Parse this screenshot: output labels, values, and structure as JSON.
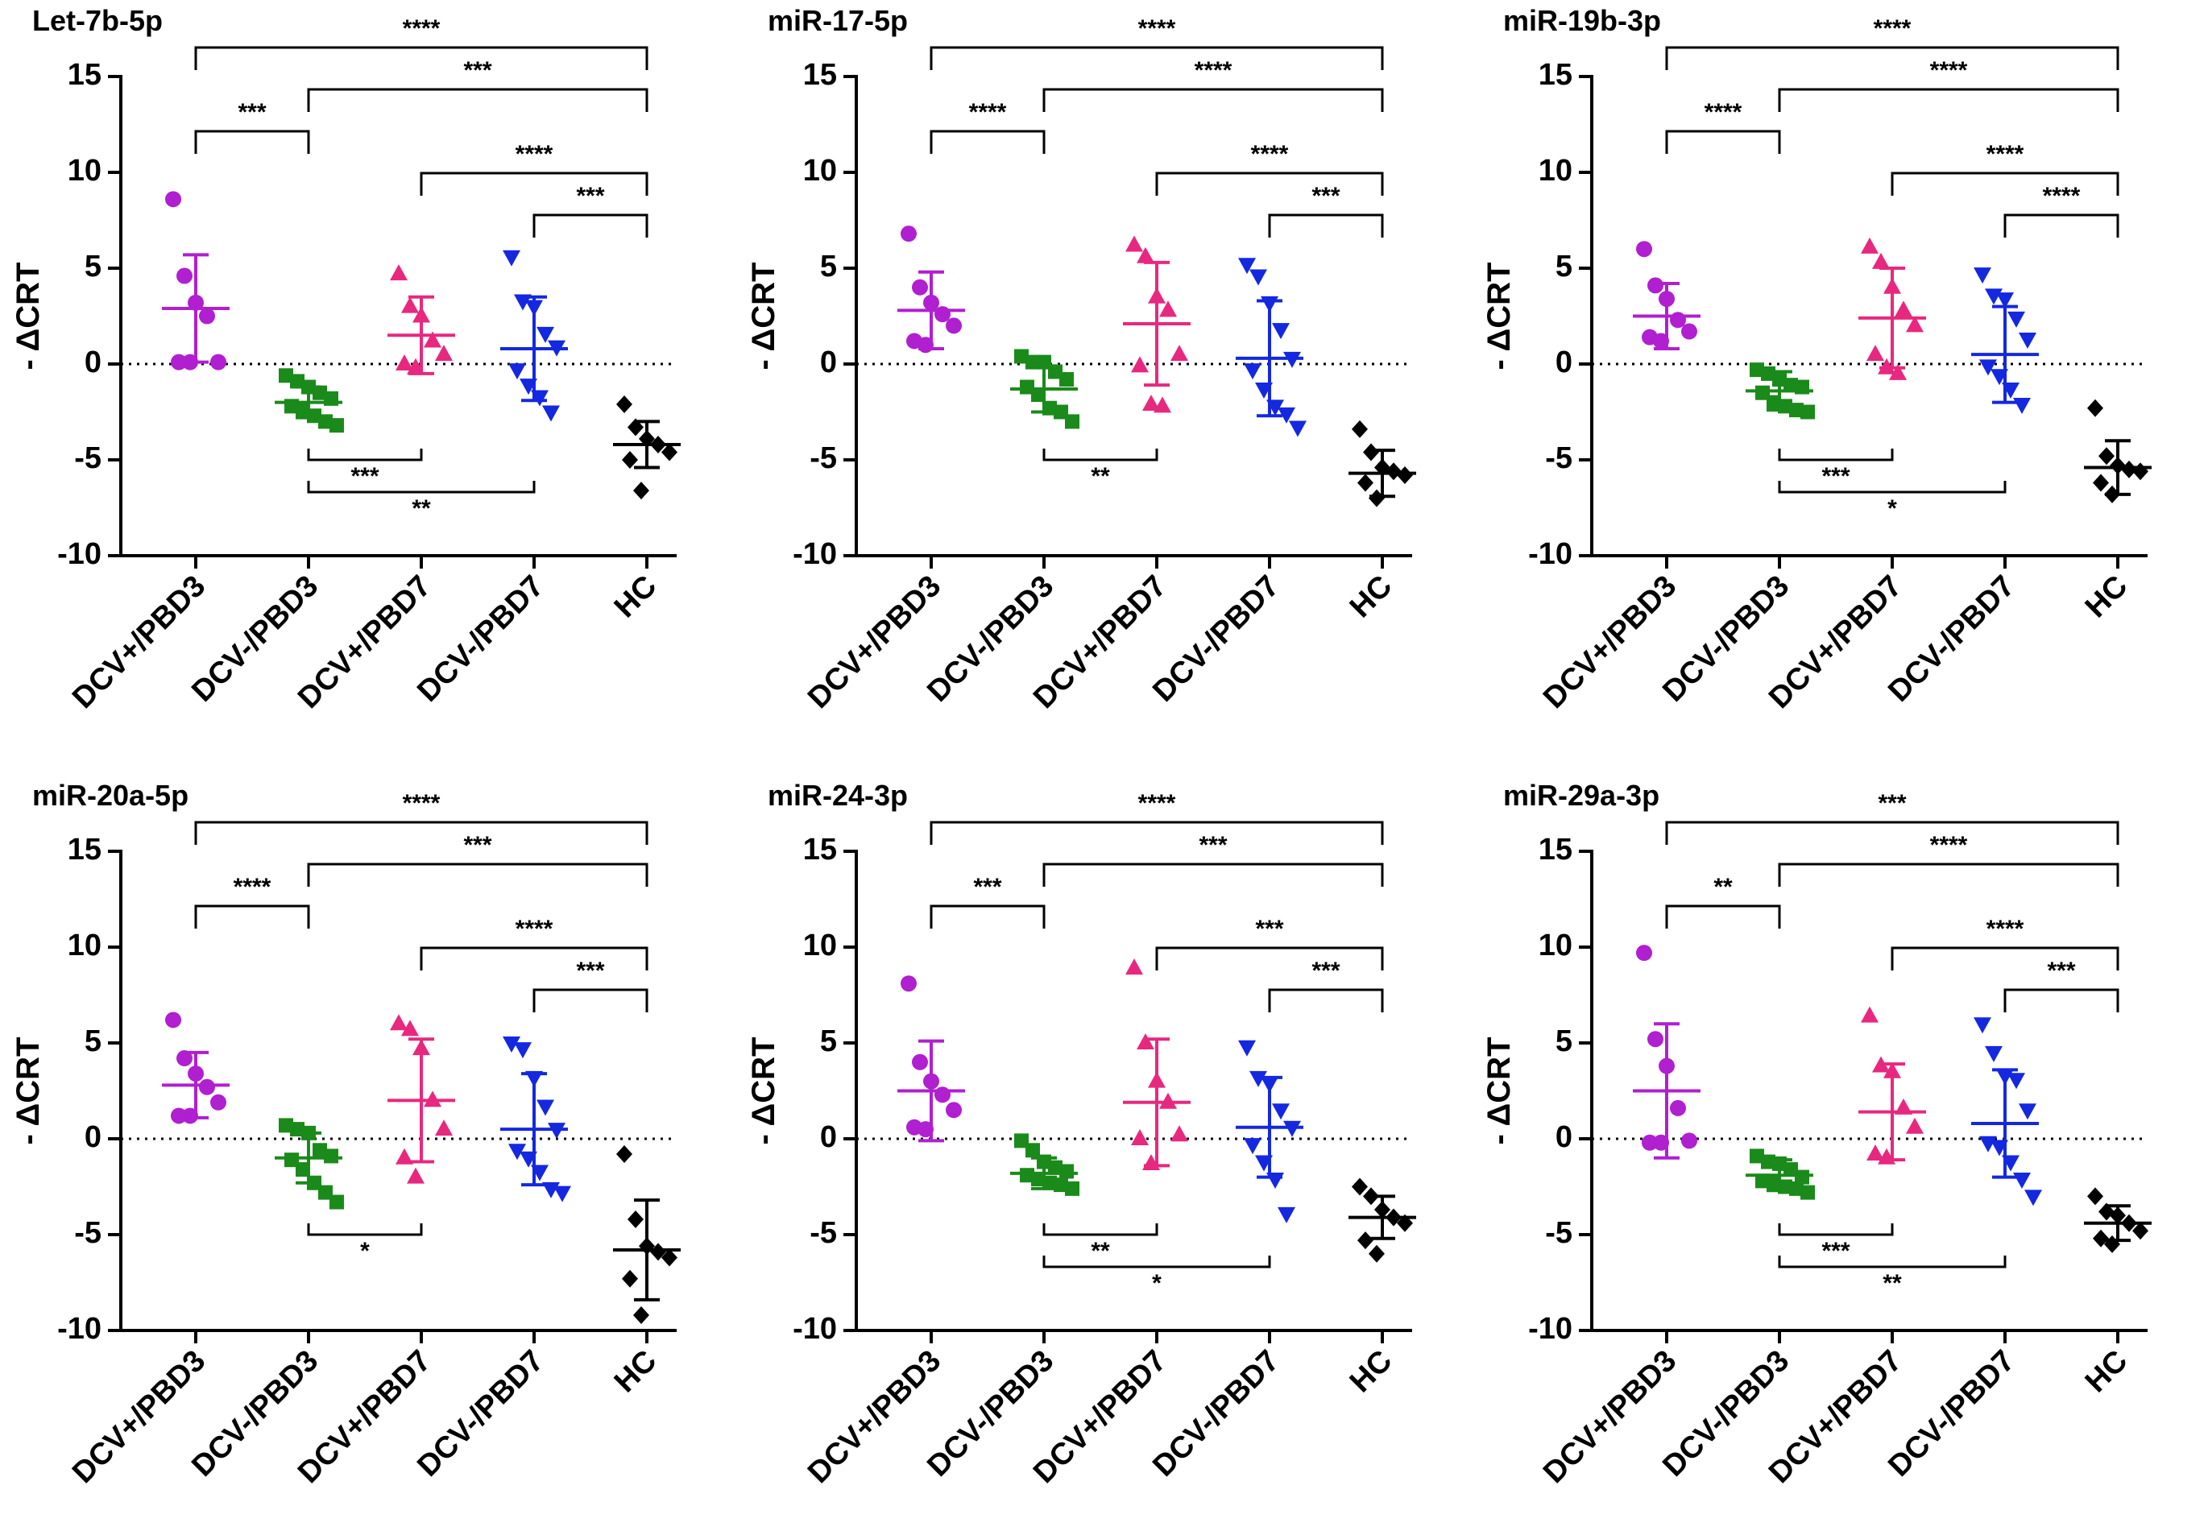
{
  "chart_data": [
    {
      "type": "dot",
      "title": "Let-7b-5p",
      "ylabel": "- ΔCRT",
      "categories": [
        "DCV+/PBD3",
        "DCV-/PBD3",
        "DCV+/PBD7",
        "DCV-/PBD7",
        "HC"
      ],
      "ylim": [
        -10,
        15
      ],
      "yticks": [
        -10,
        -5,
        0,
        5,
        10,
        15
      ],
      "reference_line": 0,
      "groups": [
        {
          "color": "#b01fd0",
          "marker": "circle",
          "points": [
            8.6,
            4.6,
            3.2,
            2.5,
            0.1,
            0.1,
            0.1
          ],
          "mean": 2.9,
          "sd": 2.8
        },
        {
          "color": "#1a8a1a",
          "marker": "square",
          "points": [
            -0.6,
            -0.9,
            -1.2,
            -1.5,
            -1.8,
            -2.2,
            -2.4,
            -2.7,
            -3.0,
            -3.2
          ],
          "mean": -2.0,
          "sd": 0.8
        },
        {
          "color": "#e8287f",
          "marker": "triangle-up",
          "points": [
            4.7,
            3.0,
            2.5,
            1.2,
            0.5,
            0,
            -0.2
          ],
          "mean": 1.5,
          "sd": 2.0
        },
        {
          "color": "#1428e0",
          "marker": "triangle-down",
          "points": [
            5.6,
            3.3,
            3.0,
            1.6,
            0.9,
            -0.3,
            -1.1,
            -1.7,
            -2.5
          ],
          "mean": 0.8,
          "sd": 2.7
        },
        {
          "color": "#000000",
          "marker": "diamond",
          "points": [
            -2.1,
            -3.3,
            -3.9,
            -4.2,
            -4.6,
            -5.0,
            -6.6
          ],
          "mean": -4.2,
          "sd": 1.2
        }
      ],
      "comparisons": [
        {
          "pair": [
            0,
            4
          ],
          "label": "****",
          "side": "above"
        },
        {
          "pair": [
            1,
            4
          ],
          "label": "***",
          "side": "above"
        },
        {
          "pair": [
            0,
            1
          ],
          "label": "***",
          "side": "above"
        },
        {
          "pair": [
            2,
            4
          ],
          "label": "****",
          "side": "above"
        },
        {
          "pair": [
            3,
            4
          ],
          "label": "***",
          "side": "above"
        },
        {
          "pair": [
            1,
            2
          ],
          "label": "***",
          "side": "below"
        },
        {
          "pair": [
            1,
            3
          ],
          "label": "**",
          "side": "below"
        }
      ]
    },
    {
      "type": "dot",
      "title": "miR-17-5p",
      "ylabel": "- ΔCRT",
      "categories": [
        "DCV+/PBD3",
        "DCV-/PBD3",
        "DCV+/PBD7",
        "DCV-/PBD7",
        "HC"
      ],
      "ylim": [
        -10,
        15
      ],
      "yticks": [
        -10,
        -5,
        0,
        5,
        10,
        15
      ],
      "reference_line": 0,
      "groups": [
        {
          "color": "#b01fd0",
          "marker": "circle",
          "points": [
            6.8,
            4.0,
            3.2,
            2.6,
            2.0,
            1.2,
            1.0
          ],
          "mean": 2.8,
          "sd": 2.0
        },
        {
          "color": "#1a8a1a",
          "marker": "square",
          "points": [
            0.4,
            0.1,
            0.1,
            -0.4,
            -0.8,
            -1.2,
            -1.6,
            -2.3,
            -2.5,
            -3.0
          ],
          "mean": -1.3,
          "sd": 1.2
        },
        {
          "color": "#e8287f",
          "marker": "triangle-up",
          "points": [
            6.2,
            5.6,
            3.5,
            2.8,
            0.5,
            -0.1,
            -2.1,
            -2.2
          ],
          "mean": 2.1,
          "sd": 3.2
        },
        {
          "color": "#1428e0",
          "marker": "triangle-down",
          "points": [
            5.2,
            4.6,
            3.2,
            1.8,
            0.3,
            -0.3,
            -1.3,
            -2.2,
            -2.6,
            -3.3
          ],
          "mean": 0.3,
          "sd": 3.0
        },
        {
          "color": "#000000",
          "marker": "diamond",
          "points": [
            -3.4,
            -4.6,
            -5.4,
            -5.6,
            -5.8,
            -6.2,
            -7.0
          ],
          "mean": -5.7,
          "sd": 1.2
        }
      ],
      "comparisons": [
        {
          "pair": [
            0,
            4
          ],
          "label": "****",
          "side": "above"
        },
        {
          "pair": [
            1,
            4
          ],
          "label": "****",
          "side": "above"
        },
        {
          "pair": [
            0,
            1
          ],
          "label": "****",
          "side": "above"
        },
        {
          "pair": [
            2,
            4
          ],
          "label": "****",
          "side": "above"
        },
        {
          "pair": [
            3,
            4
          ],
          "label": "***",
          "side": "above"
        },
        {
          "pair": [
            1,
            2
          ],
          "label": "**",
          "side": "below"
        }
      ]
    },
    {
      "type": "dot",
      "title": "miR-19b-3p",
      "ylabel": "- ΔCRT",
      "categories": [
        "DCV+/PBD3",
        "DCV-/PBD3",
        "DCV+/PBD7",
        "DCV-/PBD7",
        "HC"
      ],
      "ylim": [
        -10,
        15
      ],
      "yticks": [
        -10,
        -5,
        0,
        5,
        10,
        15
      ],
      "reference_line": 0,
      "groups": [
        {
          "color": "#b01fd0",
          "marker": "circle",
          "points": [
            6.0,
            4.1,
            3.4,
            2.3,
            1.7,
            1.4,
            1.2
          ],
          "mean": 2.5,
          "sd": 1.7
        },
        {
          "color": "#1a8a1a",
          "marker": "square",
          "points": [
            -0.3,
            -0.5,
            -0.8,
            -1.1,
            -1.2,
            -1.5,
            -2.0,
            -2.2,
            -2.4,
            -2.5
          ],
          "mean": -1.4,
          "sd": 1.0
        },
        {
          "color": "#e8287f",
          "marker": "triangle-up",
          "points": [
            6.1,
            5.3,
            4.0,
            2.8,
            2.0,
            0.5,
            -0.2,
            -0.5
          ],
          "mean": 2.4,
          "sd": 2.6
        },
        {
          "color": "#1428e0",
          "marker": "triangle-down",
          "points": [
            4.7,
            3.6,
            3.4,
            2.4,
            1.3,
            -0.1,
            -0.6,
            -1.3,
            -2.1
          ],
          "mean": 0.5,
          "sd": 2.5
        },
        {
          "color": "#000000",
          "marker": "diamond",
          "points": [
            -2.3,
            -4.8,
            -5.3,
            -5.5,
            -5.6,
            -6.2,
            -6.8
          ],
          "mean": -5.4,
          "sd": 1.4
        }
      ],
      "comparisons": [
        {
          "pair": [
            0,
            4
          ],
          "label": "****",
          "side": "above"
        },
        {
          "pair": [
            1,
            4
          ],
          "label": "****",
          "side": "above"
        },
        {
          "pair": [
            0,
            1
          ],
          "label": "****",
          "side": "above"
        },
        {
          "pair": [
            2,
            4
          ],
          "label": "****",
          "side": "above"
        },
        {
          "pair": [
            3,
            4
          ],
          "label": "****",
          "side": "above"
        },
        {
          "pair": [
            1,
            2
          ],
          "label": "***",
          "side": "below"
        },
        {
          "pair": [
            1,
            3
          ],
          "label": "*",
          "side": "below"
        }
      ]
    },
    {
      "type": "dot",
      "title": "miR-20a-5p",
      "ylabel": "- ΔCRT",
      "categories": [
        "DCV+/PBD3",
        "DCV-/PBD3",
        "DCV+/PBD7",
        "DCV-/PBD7",
        "HC"
      ],
      "ylim": [
        -10,
        15
      ],
      "yticks": [
        -10,
        -5,
        0,
        5,
        10,
        15
      ],
      "reference_line": 0,
      "groups": [
        {
          "color": "#b01fd0",
          "marker": "circle",
          "points": [
            6.2,
            4.2,
            3.4,
            2.7,
            1.9,
            1.2,
            1.2
          ],
          "mean": 2.8,
          "sd": 1.7
        },
        {
          "color": "#1a8a1a",
          "marker": "square",
          "points": [
            0.7,
            0.5,
            0.3,
            -0.6,
            -0.9,
            -1.1,
            -1.6,
            -2.3,
            -2.8,
            -3.3
          ],
          "mean": -1.0,
          "sd": 1.3
        },
        {
          "color": "#e8287f",
          "marker": "triangle-up",
          "points": [
            6.0,
            5.7,
            4.7,
            2.0,
            0.5,
            -1.0,
            -2.0
          ],
          "mean": 2.0,
          "sd": 3.2
        },
        {
          "color": "#1428e0",
          "marker": "triangle-down",
          "points": [
            5.0,
            4.7,
            3.2,
            1.7,
            0.5,
            -0.6,
            -1.0,
            -1.7,
            -2.6,
            -2.8
          ],
          "mean": 0.5,
          "sd": 2.9
        },
        {
          "color": "#000000",
          "marker": "diamond",
          "points": [
            -0.8,
            -4.2,
            -5.6,
            -5.9,
            -6.2,
            -7.3,
            -9.2
          ],
          "mean": -5.8,
          "sd": 2.6
        }
      ],
      "comparisons": [
        {
          "pair": [
            0,
            4
          ],
          "label": "****",
          "side": "above"
        },
        {
          "pair": [
            1,
            4
          ],
          "label": "***",
          "side": "above"
        },
        {
          "pair": [
            0,
            1
          ],
          "label": "****",
          "side": "above"
        },
        {
          "pair": [
            2,
            4
          ],
          "label": "****",
          "side": "above"
        },
        {
          "pair": [
            3,
            4
          ],
          "label": "***",
          "side": "above"
        },
        {
          "pair": [
            1,
            2
          ],
          "label": "*",
          "side": "below"
        }
      ]
    },
    {
      "type": "dot",
      "title": "miR-24-3p",
      "ylabel": "- ΔCRT",
      "categories": [
        "DCV+/PBD3",
        "DCV-/PBD3",
        "DCV+/PBD7",
        "DCV-/PBD7",
        "HC"
      ],
      "ylim": [
        -10,
        15
      ],
      "yticks": [
        -10,
        -5,
        0,
        5,
        10,
        15
      ],
      "reference_line": 0,
      "groups": [
        {
          "color": "#b01fd0",
          "marker": "circle",
          "points": [
            8.1,
            4.0,
            3.0,
            2.3,
            1.5,
            0.6,
            0.5
          ],
          "mean": 2.5,
          "sd": 2.6
        },
        {
          "color": "#1a8a1a",
          "marker": "square",
          "points": [
            -0.1,
            -0.6,
            -1.2,
            -1.5,
            -1.7,
            -1.9,
            -2.1,
            -2.3,
            -2.4,
            -2.6
          ],
          "mean": -1.8,
          "sd": 0.8
        },
        {
          "color": "#e8287f",
          "marker": "triangle-up",
          "points": [
            8.9,
            5.0,
            3.0,
            1.9,
            0.2,
            0,
            -1.3
          ],
          "mean": 1.9,
          "sd": 3.3
        },
        {
          "color": "#1428e0",
          "marker": "triangle-down",
          "points": [
            4.8,
            3.2,
            2.9,
            1.5,
            0.6,
            -0.3,
            -1.2,
            -2.1,
            -3.9
          ],
          "mean": 0.6,
          "sd": 2.6
        },
        {
          "color": "#000000",
          "marker": "diamond",
          "points": [
            -2.5,
            -3.0,
            -3.7,
            -4.1,
            -4.4,
            -5.3,
            -6.0
          ],
          "mean": -4.1,
          "sd": 1.1
        }
      ],
      "comparisons": [
        {
          "pair": [
            0,
            4
          ],
          "label": "****",
          "side": "above"
        },
        {
          "pair": [
            1,
            4
          ],
          "label": "***",
          "side": "above"
        },
        {
          "pair": [
            0,
            1
          ],
          "label": "***",
          "side": "above"
        },
        {
          "pair": [
            2,
            4
          ],
          "label": "***",
          "side": "above"
        },
        {
          "pair": [
            3,
            4
          ],
          "label": "***",
          "side": "above"
        },
        {
          "pair": [
            1,
            2
          ],
          "label": "**",
          "side": "below"
        },
        {
          "pair": [
            1,
            3
          ],
          "label": "*",
          "side": "below"
        }
      ]
    },
    {
      "type": "dot",
      "title": "miR-29a-3p",
      "ylabel": "- ΔCRT",
      "categories": [
        "DCV+/PBD3",
        "DCV-/PBD3",
        "DCV+/PBD7",
        "DCV-/PBD7",
        "HC"
      ],
      "ylim": [
        -10,
        15
      ],
      "yticks": [
        -10,
        -5,
        0,
        5,
        10,
        15
      ],
      "reference_line": 0,
      "groups": [
        {
          "color": "#b01fd0",
          "marker": "circle",
          "points": [
            9.7,
            5.2,
            3.8,
            1.6,
            -0.1,
            -0.2,
            -0.2
          ],
          "mean": 2.5,
          "sd": 3.5
        },
        {
          "color": "#1a8a1a",
          "marker": "square",
          "points": [
            -0.9,
            -1.2,
            -1.3,
            -1.6,
            -2.0,
            -2.2,
            -2.3,
            -2.5,
            -2.6,
            -2.8
          ],
          "mean": -1.9,
          "sd": 0.8
        },
        {
          "color": "#e8287f",
          "marker": "triangle-up",
          "points": [
            6.4,
            3.8,
            3.5,
            1.6,
            0.6,
            -0.8,
            -1.0
          ],
          "mean": 1.4,
          "sd": 2.5
        },
        {
          "color": "#1428e0",
          "marker": "triangle-down",
          "points": [
            6.0,
            4.5,
            3.3,
            3.1,
            1.5,
            -0.2,
            -0.4,
            -1.2,
            -2.1,
            -3.0
          ],
          "mean": 0.8,
          "sd": 2.8
        },
        {
          "color": "#000000",
          "marker": "diamond",
          "points": [
            -3.0,
            -3.8,
            -4.0,
            -4.4,
            -4.8,
            -5.2,
            -5.5
          ],
          "mean": -4.4,
          "sd": 0.9
        }
      ],
      "comparisons": [
        {
          "pair": [
            0,
            4
          ],
          "label": "***",
          "side": "above"
        },
        {
          "pair": [
            1,
            4
          ],
          "label": "****",
          "side": "above"
        },
        {
          "pair": [
            0,
            1
          ],
          "label": "**",
          "side": "above"
        },
        {
          "pair": [
            2,
            4
          ],
          "label": "****",
          "side": "above"
        },
        {
          "pair": [
            3,
            4
          ],
          "label": "***",
          "side": "above"
        },
        {
          "pair": [
            1,
            2
          ],
          "label": "***",
          "side": "below"
        },
        {
          "pair": [
            1,
            3
          ],
          "label": "**",
          "side": "below"
        }
      ]
    }
  ]
}
